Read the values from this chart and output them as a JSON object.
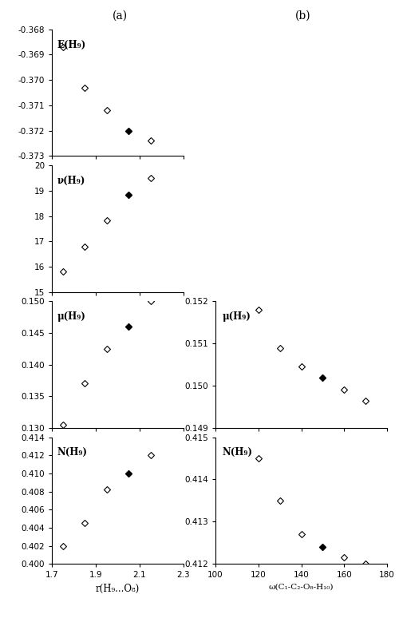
{
  "title_a": "(a)",
  "title_b": "(b)",
  "xlabel_a": "r(H₉...O₈)",
  "xlabel_b": "ω(C₁-C₂-O₈-H₁₀)",
  "panels_left": [
    {
      "ylabel": "E(H₉)",
      "xlim": [
        1.7,
        2.3
      ],
      "ylim": [
        -0.373,
        -0.368
      ],
      "yticks": [
        -0.373,
        -0.372,
        -0.371,
        -0.37,
        -0.369,
        -0.368
      ],
      "x": [
        1.75,
        1.85,
        1.95,
        2.05,
        2.15
      ],
      "y": [
        -0.3687,
        -0.3703,
        -0.3712,
        -0.372,
        -0.3724
      ],
      "filled": [
        false,
        false,
        false,
        true,
        false
      ]
    },
    {
      "ylabel": "ν(H₉)",
      "xlim": [
        1.7,
        2.3
      ],
      "ylim": [
        15,
        20
      ],
      "yticks": [
        15,
        16,
        17,
        18,
        19,
        20
      ],
      "x": [
        1.75,
        1.85,
        1.95,
        2.05,
        2.15
      ],
      "y": [
        15.8,
        16.8,
        17.82,
        18.85,
        19.5
      ],
      "filled": [
        false,
        false,
        false,
        true,
        false
      ]
    },
    {
      "ylabel": "μ(H₉)",
      "xlim": [
        1.7,
        2.3
      ],
      "ylim": [
        0.13,
        0.15
      ],
      "yticks": [
        0.13,
        0.135,
        0.14,
        0.145,
        0.15
      ],
      "x": [
        1.75,
        1.85,
        1.95,
        2.05,
        2.15
      ],
      "y": [
        0.1305,
        0.137,
        0.1425,
        0.146,
        0.15
      ],
      "filled": [
        false,
        false,
        false,
        true,
        false
      ]
    },
    {
      "ylabel": "N(H₉)",
      "xlim": [
        1.7,
        2.3
      ],
      "ylim": [
        0.4,
        0.414
      ],
      "yticks": [
        0.4,
        0.402,
        0.404,
        0.406,
        0.408,
        0.41,
        0.412,
        0.414
      ],
      "x": [
        1.75,
        1.85,
        1.95,
        2.05,
        2.15
      ],
      "y": [
        0.402,
        0.4045,
        0.4082,
        0.41,
        0.412
      ],
      "filled": [
        false,
        false,
        false,
        true,
        false
      ]
    }
  ],
  "panels_right": [
    {
      "ylabel": "μ(H₉)",
      "xlim": [
        100,
        180
      ],
      "ylim": [
        0.149,
        0.152
      ],
      "yticks": [
        0.149,
        0.15,
        0.151,
        0.152
      ],
      "x": [
        120,
        130,
        140,
        150,
        160,
        170
      ],
      "y": [
        0.1518,
        0.1509,
        0.15045,
        0.1502,
        0.1499,
        0.14965
      ],
      "filled": [
        false,
        false,
        false,
        true,
        false,
        false
      ]
    },
    {
      "ylabel": "N(H₉)",
      "xlim": [
        100,
        180
      ],
      "ylim": [
        0.412,
        0.415
      ],
      "yticks": [
        0.412,
        0.413,
        0.414,
        0.415
      ],
      "x": [
        120,
        130,
        140,
        150,
        160,
        170
      ],
      "y": [
        0.4145,
        0.4135,
        0.4127,
        0.4124,
        0.41215,
        0.412
      ],
      "filled": [
        false,
        false,
        false,
        true,
        false,
        false
      ]
    }
  ],
  "xticks_a": [
    1.7,
    1.9,
    2.1,
    2.3
  ],
  "xticks_b": [
    100,
    120,
    140,
    160,
    180
  ]
}
